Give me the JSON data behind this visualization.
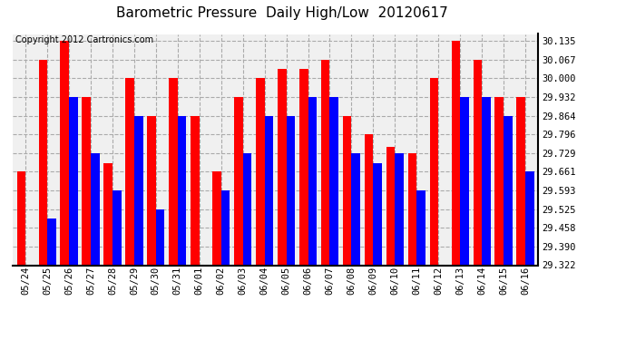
{
  "title": "Barometric Pressure  Daily High/Low  20120617",
  "copyright": "Copyright 2012 Cartronics.com",
  "categories": [
    "05/24",
    "05/25",
    "05/26",
    "05/27",
    "05/28",
    "05/29",
    "05/30",
    "05/31",
    "06/01",
    "06/02",
    "06/03",
    "06/04",
    "06/05",
    "06/06",
    "06/07",
    "06/08",
    "06/09",
    "06/10",
    "06/11",
    "06/12",
    "06/13",
    "06/14",
    "06/15",
    "06/16"
  ],
  "high_values": [
    29.661,
    30.067,
    30.135,
    29.932,
    29.693,
    30.0,
    29.864,
    30.0,
    29.864,
    29.661,
    29.932,
    30.0,
    30.033,
    30.033,
    30.067,
    29.864,
    29.796,
    29.75,
    29.729,
    30.0,
    30.135,
    30.067,
    29.932,
    29.932
  ],
  "low_values": [
    29.322,
    29.491,
    29.932,
    29.729,
    29.593,
    29.864,
    29.525,
    29.864,
    29.322,
    29.593,
    29.729,
    29.864,
    29.864,
    29.932,
    29.932,
    29.729,
    29.693,
    29.729,
    29.593,
    29.322,
    29.932,
    29.932,
    29.864,
    29.661
  ],
  "high_color": "#ff0000",
  "low_color": "#0000ff",
  "background_color": "#ffffff",
  "plot_bg_color": "#f0f0f0",
  "yticks": [
    29.322,
    29.39,
    29.458,
    29.525,
    29.593,
    29.661,
    29.729,
    29.796,
    29.864,
    29.932,
    30.0,
    30.067,
    30.135
  ],
  "ymin": 29.322,
  "ymax": 30.16,
  "title_fontsize": 11,
  "copyright_fontsize": 7
}
